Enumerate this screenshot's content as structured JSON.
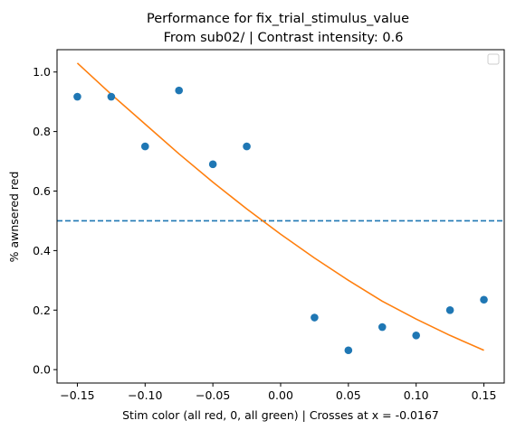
{
  "chart_data": {
    "type": "scatter",
    "title": "Performance for fix_trial_stimulus_value",
    "subtitle": "From sub02/ | Contrast intensity: 0.6",
    "xlabel": "Stim color (all red, 0, all green) | Crosses at x = -0.0167",
    "ylabel": "% awnsered red",
    "xlim": [
      -0.165,
      0.165
    ],
    "ylim": [
      -0.045,
      1.075
    ],
    "x_ticks": [
      -0.15,
      -0.1,
      -0.05,
      0.0,
      0.05,
      0.1,
      0.15
    ],
    "x_tick_labels": [
      "−0.15",
      "−0.10",
      "−0.05",
      "0.00",
      "0.05",
      "0.10",
      "0.15"
    ],
    "y_ticks": [
      0.0,
      0.2,
      0.4,
      0.6,
      0.8,
      1.0
    ],
    "y_tick_labels": [
      "0.0",
      "0.2",
      "0.4",
      "0.6",
      "0.8",
      "1.0"
    ],
    "grid": false,
    "legend": {
      "placement": "top-right",
      "entries": []
    },
    "points": {
      "color": "#1f77b4",
      "x": [
        -0.15,
        -0.125,
        -0.1,
        -0.075,
        -0.05,
        -0.025,
        0.025,
        0.05,
        0.075,
        0.1,
        0.125,
        0.15
      ],
      "y": [
        0.917,
        0.917,
        0.75,
        0.938,
        0.69,
        0.75,
        0.175,
        0.065,
        0.143,
        0.115,
        0.2,
        0.235
      ]
    },
    "fit_curve": {
      "color": "#ff7f0e",
      "x": [
        -0.15,
        -0.125,
        -0.1,
        -0.075,
        -0.05,
        -0.025,
        0.0,
        0.025,
        0.05,
        0.075,
        0.1,
        0.125,
        0.15
      ],
      "y": [
        1.03,
        0.925,
        0.825,
        0.725,
        0.63,
        0.54,
        0.455,
        0.375,
        0.3,
        0.23,
        0.17,
        0.115,
        0.065
      ]
    },
    "threshold_line": {
      "y": 0.5,
      "color": "#1f77b4",
      "style": "dashed"
    }
  }
}
